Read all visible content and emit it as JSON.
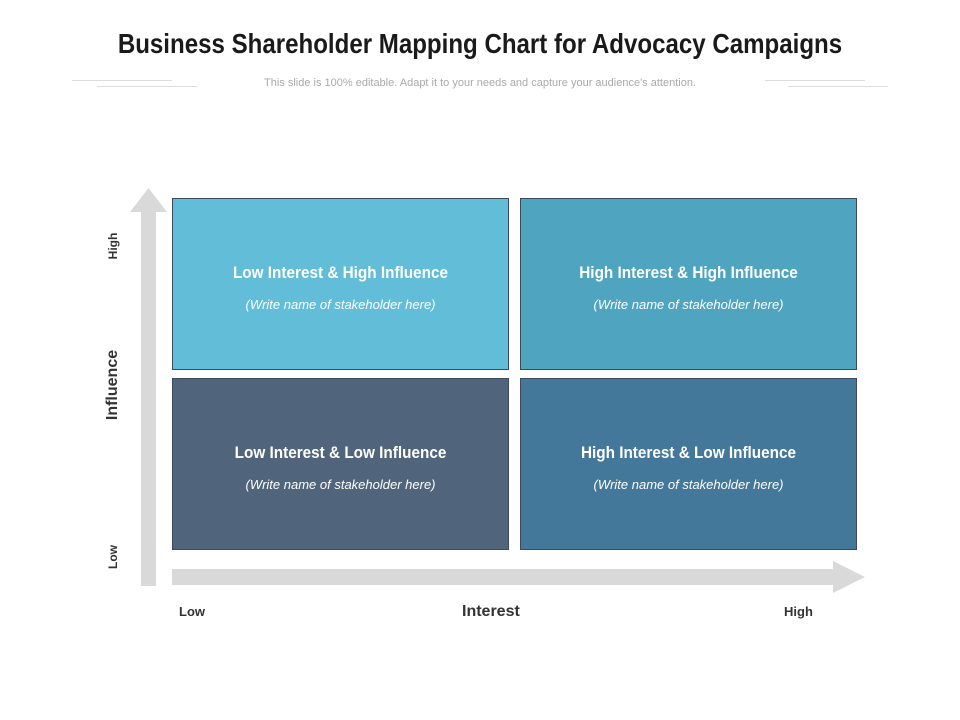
{
  "header": {
    "title": "Business Shareholder Mapping Chart for Advocacy Campaigns",
    "subtitle": "This slide is 100% editable. Adapt it to your needs and capture your audience's attention."
  },
  "matrix": {
    "quadrants": [
      {
        "title": "Low Interest & High Influence",
        "subtitle": "(Write name of stakeholder here)",
        "color": "#62bdd8"
      },
      {
        "title": "High Interest & High Influence",
        "subtitle": "(Write name of stakeholder here)",
        "color": "#4fa5c0"
      },
      {
        "title": "Low Interest & Low Influence",
        "subtitle": "(Write name of stakeholder here)",
        "color": "#50657c"
      },
      {
        "title": "High Interest & Low Influence",
        "subtitle": "(Write name of stakeholder here)",
        "color": "#44789a"
      }
    ]
  },
  "axes": {
    "x_label": "Interest",
    "x_low": "Low",
    "x_high": "High",
    "y_label": "Influence",
    "y_low": "Low",
    "y_high": "High",
    "arrow_color": "#d9d9d9"
  }
}
